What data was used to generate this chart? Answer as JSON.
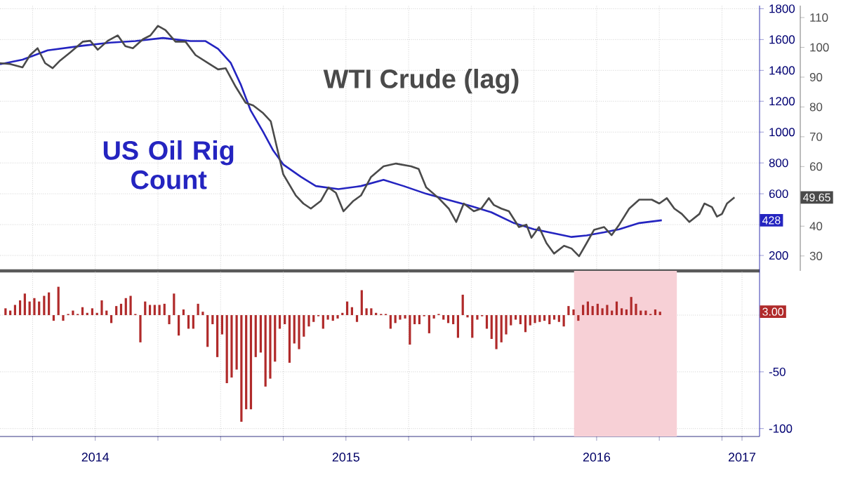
{
  "chart_data": [
    {
      "type": "line",
      "xlim": [
        2014.12,
        2017.15
      ],
      "ylim": [
        100,
        1820
      ],
      "y2lim": [
        25,
        114
      ],
      "grid": true,
      "tick_labels": "y",
      "xticks": [
        {
          "value": 2014.25,
          "label": null
        },
        {
          "value": 2014.5,
          "label": null
        },
        {
          "value": 2014.75,
          "label": null
        },
        {
          "value": 2015,
          "label": null
        },
        {
          "value": 2015.25,
          "label": null
        },
        {
          "value": 2015.5,
          "label": null
        },
        {
          "value": 2015.75,
          "label": null
        },
        {
          "value": 2016,
          "label": null
        },
        {
          "value": 2016.25,
          "label": null
        },
        {
          "value": 2016.5,
          "label": null
        },
        {
          "value": 2016.75,
          "label": null
        },
        {
          "value": 2017,
          "label": null
        }
      ],
      "yticks": [
        200,
        {
          "value": 400,
          "label": null
        },
        600,
        800,
        1000,
        1200,
        1400,
        1600,
        1800
      ],
      "y2ticks": [
        30,
        40,
        60,
        70,
        80,
        90,
        100,
        110
      ],
      "annotations": [
        "428",
        "49.65"
      ],
      "series": [
        {
          "name": "US Oil Rig Count",
          "color": "#2424c0",
          "axis": "y",
          "x": [
            2014.12,
            2014.21,
            2014.31,
            2014.45,
            2014.56,
            2014.66,
            2014.77,
            2014.88,
            2014.94,
            2014.99,
            2015.04,
            2015.08,
            2015.12,
            2015.17,
            2015.21,
            2015.25,
            2015.32,
            2015.38,
            2015.47,
            2015.56,
            2015.65,
            2015.73,
            2015.82,
            2015.91,
            2016.0,
            2016.08,
            2016.17,
            2016.25,
            2016.34,
            2016.4,
            2016.46,
            2016.53,
            2016.59,
            2016.67,
            2016.76
          ],
          "values": [
            1440,
            1470,
            1530,
            1560,
            1580,
            1590,
            1610,
            1590,
            1590,
            1540,
            1450,
            1310,
            1140,
            1000,
            880,
            790,
            710,
            650,
            630,
            650,
            690,
            650,
            600,
            560,
            520,
            480,
            410,
            370,
            340,
            320,
            330,
            350,
            370,
            410,
            428
          ]
        },
        {
          "name": "WTI Crude (lag)",
          "color": "#4a4a4a",
          "axis": "y2",
          "x": [
            2014.12,
            2014.16,
            2014.21,
            2014.24,
            2014.27,
            2014.3,
            2014.33,
            2014.36,
            2014.4,
            2014.45,
            2014.48,
            2014.51,
            2014.55,
            2014.59,
            2014.62,
            2014.65,
            2014.69,
            2014.72,
            2014.75,
            2014.78,
            2014.82,
            2014.86,
            2014.9,
            2014.95,
            2014.99,
            2015.02,
            2015.06,
            2015.1,
            2015.13,
            2015.17,
            2015.2,
            2015.22,
            2015.25,
            2015.3,
            2015.33,
            2015.36,
            2015.4,
            2015.43,
            2015.46,
            2015.49,
            2015.53,
            2015.56,
            2015.6,
            2015.65,
            2015.7,
            2015.76,
            2015.79,
            2015.82,
            2015.87,
            2015.91,
            2015.94,
            2015.97,
            2016.01,
            2016.04,
            2016.07,
            2016.09,
            2016.12,
            2016.15,
            2016.19,
            2016.22,
            2016.24,
            2016.27,
            2016.3,
            2016.33,
            2016.37,
            2016.4,
            2016.43,
            2016.46,
            2016.49,
            2016.53,
            2016.56,
            2016.59,
            2016.63,
            2016.67,
            2016.72,
            2016.75,
            2016.78,
            2016.81,
            2016.84,
            2016.87,
            2016.91,
            2016.93,
            2016.96,
            2016.98,
            2017.0,
            2017.02,
            2017.05
          ],
          "values": [
            94.7,
            94.4,
            93.3,
            97.4,
            99.7,
            94.7,
            93.0,
            95.6,
            98.3,
            101.9,
            102.2,
            99.2,
            102.2,
            104.0,
            100.4,
            99.7,
            102.7,
            104.0,
            107.2,
            105.8,
            101.9,
            101.9,
            97.4,
            94.7,
            92.6,
            93.0,
            86.8,
            81.4,
            80.5,
            77.9,
            75.2,
            68.1,
            57.4,
            50.3,
            47.6,
            45.9,
            48.5,
            53.0,
            51.2,
            45.0,
            48.5,
            50.3,
            56.5,
            60.1,
            61.0,
            60.1,
            59.2,
            53.0,
            49.4,
            45.9,
            41.4,
            47.6,
            45.0,
            45.9,
            49.4,
            47.1,
            45.9,
            45.0,
            39.7,
            40.5,
            36.1,
            39.7,
            34.3,
            30.8,
            33.4,
            32.5,
            29.9,
            34.3,
            38.8,
            39.7,
            37.0,
            40.5,
            45.9,
            48.9,
            48.9,
            47.6,
            49.4,
            45.9,
            44.1,
            41.4,
            44.1,
            47.6,
            46.4,
            43.2,
            44.1,
            47.6,
            49.65
          ]
        }
      ]
    },
    {
      "type": "bar",
      "xlim": [
        2014.12,
        2017.15
      ],
      "ylim": [
        -107,
        39
      ],
      "grid": true,
      "xticks": [
        {
          "value": 2014.25,
          "label": null
        },
        {
          "value": 2014.5,
          "label": "2014"
        },
        {
          "value": 2014.75,
          "label": null
        },
        {
          "value": 2015,
          "label": null
        },
        {
          "value": 2015.25,
          "label": null
        },
        {
          "value": 2015.5,
          "label": "2015"
        },
        {
          "value": 2015.75,
          "label": null
        },
        {
          "value": 2016,
          "label": null
        },
        {
          "value": 2016.25,
          "label": null
        },
        {
          "value": 2016.5,
          "label": "2016"
        },
        {
          "value": 2016.75,
          "label": null
        },
        {
          "value": 2017,
          "label": null
        },
        {
          "value": 2017.08,
          "label": "2017"
        }
      ],
      "yticks": [
        -100,
        -50,
        {
          "value": 0,
          "label": null
        }
      ],
      "bands": [
        {
          "axis": "x",
          "from": 2016.41,
          "to": 2016.82,
          "color": "#f7d0d6"
        }
      ],
      "annotations": [
        "3.00"
      ],
      "series": [
        {
          "color": "#b02a2a",
          "x": [
            2014.142,
            2014.161,
            2014.18,
            2014.2,
            2014.219,
            2014.238,
            2014.257,
            2014.276,
            2014.296,
            2014.315,
            2014.334,
            2014.353,
            2014.372,
            2014.392,
            2014.411,
            2014.43,
            2014.449,
            2014.468,
            2014.488,
            2014.507,
            2014.526,
            2014.545,
            2014.564,
            2014.584,
            2014.603,
            2014.622,
            2014.641,
            2014.66,
            2014.68,
            2014.699,
            2014.718,
            2014.737,
            2014.756,
            2014.776,
            2014.795,
            2014.814,
            2014.833,
            2014.852,
            2014.872,
            2014.891,
            2014.91,
            2014.929,
            2014.948,
            2014.968,
            2014.987,
            2015.006,
            2015.025,
            2015.044,
            2015.064,
            2015.083,
            2015.102,
            2015.121,
            2015.14,
            2015.16,
            2015.179,
            2015.198,
            2015.217,
            2015.236,
            2015.256,
            2015.275,
            2015.294,
            2015.313,
            2015.332,
            2015.352,
            2015.371,
            2015.39,
            2015.409,
            2015.428,
            2015.448,
            2015.467,
            2015.486,
            2015.505,
            2015.524,
            2015.544,
            2015.563,
            2015.582,
            2015.601,
            2015.62,
            2015.64,
            2015.659,
            2015.678,
            2015.697,
            2015.716,
            2015.736,
            2015.755,
            2015.774,
            2015.793,
            2015.812,
            2015.832,
            2015.851,
            2015.87,
            2015.889,
            2015.908,
            2015.928,
            2015.947,
            2015.966,
            2015.985,
            2016.004,
            2016.024,
            2016.043,
            2016.062,
            2016.081,
            2016.1,
            2016.12,
            2016.139,
            2016.158,
            2016.177,
            2016.196,
            2016.216,
            2016.235,
            2016.254,
            2016.273,
            2016.292,
            2016.312,
            2016.331,
            2016.35,
            2016.369,
            2016.388,
            2016.408,
            2016.427,
            2016.446,
            2016.465,
            2016.484,
            2016.504,
            2016.523,
            2016.542,
            2016.561,
            2016.58,
            2016.6,
            2016.619,
            2016.638,
            2016.657,
            2016.676,
            2016.696,
            2016.715,
            2016.734,
            2016.753
          ],
          "values": [
            6,
            4,
            9,
            13,
            19,
            12,
            15,
            12,
            17,
            20,
            -5,
            25,
            -5,
            1,
            4,
            1,
            7,
            2,
            6,
            2,
            13,
            4,
            -7,
            8,
            10,
            15,
            17,
            1,
            -24,
            12,
            9,
            9,
            9,
            10,
            -8,
            19,
            -18,
            5,
            -12,
            -12,
            10,
            3,
            -28,
            -8,
            -37,
            -17,
            -60,
            -55,
            -48,
            -94,
            -83,
            -83,
            -37,
            -33,
            -63,
            -56,
            -41,
            -12,
            -8,
            -42,
            -25,
            -30,
            -19,
            -10,
            -6,
            -1,
            -12,
            -4,
            -5,
            -3,
            2,
            12,
            7,
            -6,
            22,
            6,
            6,
            2,
            1,
            1,
            -12,
            -7,
            -4,
            -3,
            -26,
            -8,
            -8,
            -1,
            -16,
            -3,
            1,
            -4,
            -7,
            -8,
            -20,
            18,
            -2,
            -20,
            -4,
            -1,
            -12,
            -21,
            -30,
            -24,
            -17,
            -9,
            -4,
            -8,
            -15,
            -9,
            -7,
            -6,
            -5,
            -8,
            -4,
            -6,
            -10,
            8,
            5,
            -5,
            9,
            12,
            8,
            10,
            6,
            9,
            4,
            12,
            6,
            5,
            16,
            10,
            4,
            4,
            1,
            5,
            3
          ]
        }
      ]
    }
  ]
}
